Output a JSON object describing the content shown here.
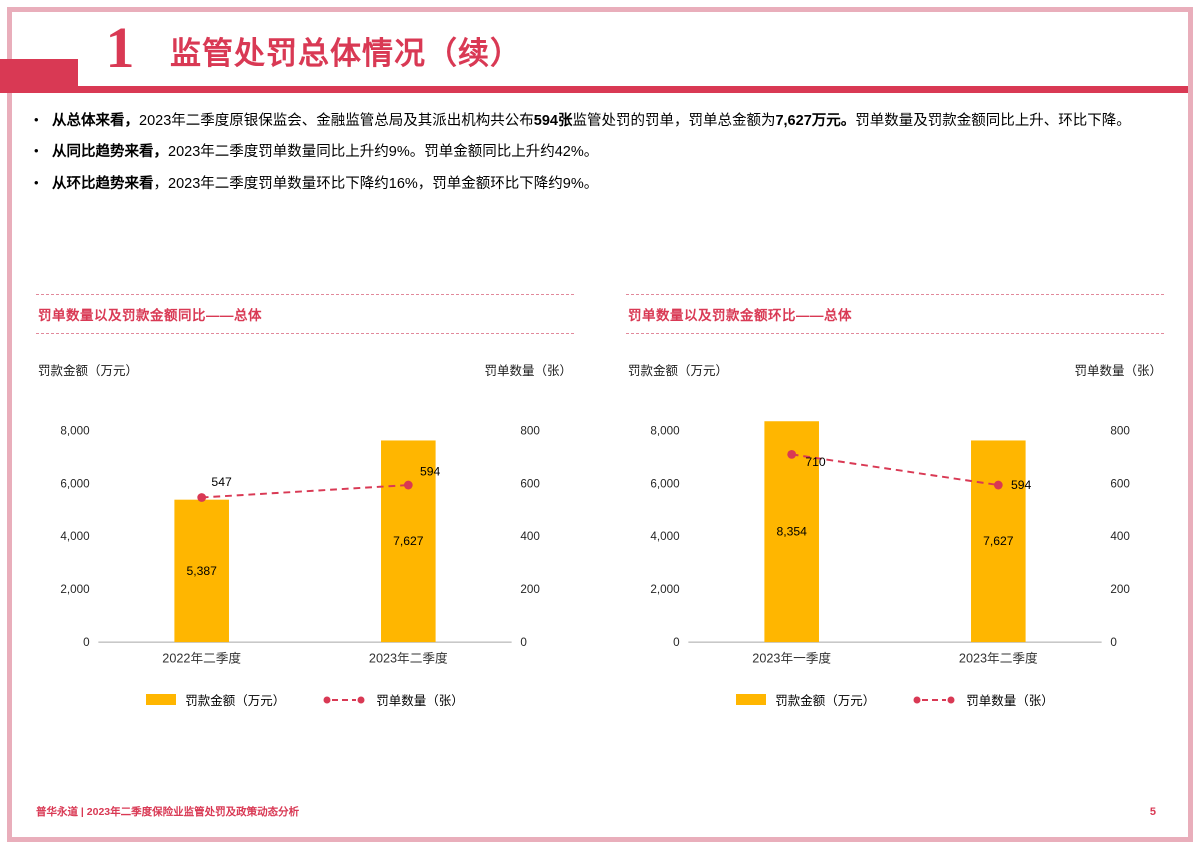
{
  "colors": {
    "accent": "#D93954",
    "accent_light": "#E2899B",
    "bar": "#FFB600",
    "frame": "#E9AEBB",
    "axis": "#A6A6A6"
  },
  "header": {
    "section_number": "1",
    "title": "监管处罚总体情况（续）"
  },
  "bullets": [
    {
      "segments": [
        {
          "text": "从总体来看，",
          "bold": true
        },
        {
          "text": "2023年二季度原银保监会、金融监管总局及其派出机构共公布",
          "bold": false
        },
        {
          "text": "594张",
          "bold": true
        },
        {
          "text": "监管处罚的罚单，罚单总金额为",
          "bold": false
        },
        {
          "text": "7,627万元。",
          "bold": true
        },
        {
          "text": "罚单数量及罚款金额同比上升、环比下降。",
          "bold": false
        }
      ]
    },
    {
      "segments": [
        {
          "text": "从同比趋势来看，",
          "bold": true
        },
        {
          "text": "2023年二季度罚单数量同比上升约9%。罚单金额同比上升约42%。",
          "bold": false
        }
      ]
    },
    {
      "segments": [
        {
          "text": "从环比趋势来看",
          "bold": true
        },
        {
          "text": "，2023年二季度罚单数量环比下降约16%，罚单金额环比下降约9%。",
          "bold": false
        }
      ]
    }
  ],
  "chart_data": [
    {
      "type": "bar",
      "subtype": "bar+line-combo",
      "title": "罚单数量以及罚款金额同比——总体",
      "left_axis_label": "罚款金额（万元）",
      "right_axis_label": "罚单数量（张）",
      "categories": [
        "2022年二季度",
        "2023年二季度"
      ],
      "series": [
        {
          "name": "罚款金额（万元）",
          "type": "bar",
          "axis": "left",
          "values": [
            5387,
            7627
          ],
          "labels": [
            "5,387",
            "7,627"
          ]
        },
        {
          "name": "罚单数量（张）",
          "type": "line",
          "axis": "right",
          "values": [
            547,
            594
          ],
          "labels": [
            "547",
            "594"
          ],
          "label_offsets": [
            [
              10,
              -12
            ],
            [
              12,
              -10
            ]
          ]
        }
      ],
      "left_axis": {
        "max": 8000,
        "ticks": [
          "8,000",
          "6,000",
          "4,000",
          "2,000",
          "0"
        ]
      },
      "right_axis": {
        "max": 800,
        "ticks": [
          "800",
          "600",
          "400",
          "200",
          "0"
        ]
      },
      "legend": [
        "罚款金额（万元）",
        "罚单数量（张）"
      ],
      "legend_position": "bottom",
      "grid": false
    },
    {
      "type": "bar",
      "subtype": "bar+line-combo",
      "title": "罚单数量以及罚款金额环比——总体",
      "left_axis_label": "罚款金额（万元）",
      "right_axis_label": "罚单数量（张）",
      "categories": [
        "2023年一季度",
        "2023年二季度"
      ],
      "series": [
        {
          "name": "罚款金额（万元）",
          "type": "bar",
          "axis": "left",
          "values": [
            8354,
            7627
          ],
          "labels": [
            "8,354",
            "7,627"
          ]
        },
        {
          "name": "罚单数量（张）",
          "type": "line",
          "axis": "right",
          "values": [
            710,
            594
          ],
          "labels": [
            "710",
            "594"
          ],
          "label_offsets": [
            [
              14,
              12
            ],
            [
              13,
              4
            ]
          ]
        }
      ],
      "left_axis": {
        "max": 8000,
        "ticks": [
          "8,000",
          "6,000",
          "4,000",
          "2,000",
          "0"
        ]
      },
      "right_axis": {
        "max": 800,
        "ticks": [
          "800",
          "600",
          "400",
          "200",
          "0"
        ]
      },
      "legend": [
        "罚款金额（万元）",
        "罚单数量（张）"
      ],
      "legend_position": "bottom",
      "grid": false
    }
  ],
  "footer": {
    "text": "普华永道 | 2023年二季度保险业监管处罚及政策动态分析",
    "page": "5"
  }
}
